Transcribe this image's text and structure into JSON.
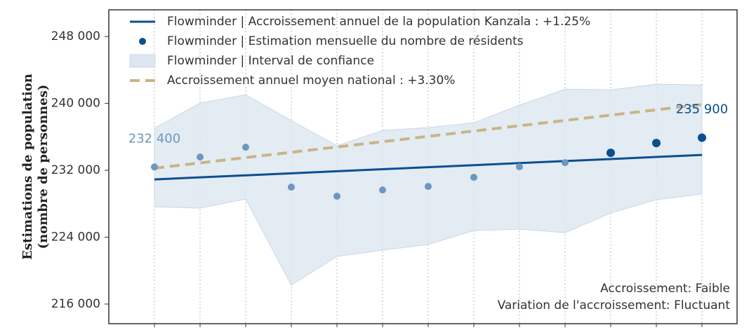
{
  "chart_data": {
    "type": "line",
    "ylabel": [
      "Estimations de population",
      "(nombre de personnes)"
    ],
    "categories": [
      null,
      null,
      null,
      null,
      null,
      null,
      null,
      null,
      null,
      null,
      null,
      null,
      null
    ],
    "ylim": [
      213650,
      251200
    ],
    "yticks": [
      {
        "value": 216000,
        "label": "216 000"
      },
      {
        "value": 224000,
        "label": "224 000"
      },
      {
        "value": 232000,
        "label": "232 000"
      },
      {
        "value": 240000,
        "label": "240 000"
      },
      {
        "value": 248000,
        "label": "248 000"
      }
    ],
    "grid": true,
    "legend": "upper left",
    "series": [
      {
        "name": "Flowminder | Accroissement annuel de la population Kanzala : +1.25%",
        "kind": "line",
        "color": "#0b4f8f",
        "values": [
          230910,
          231154,
          231398,
          231642,
          231886,
          232130,
          232374,
          232618,
          232862,
          233106,
          233350,
          233594,
          233838
        ]
      },
      {
        "name": "Flowminder | Estimation mensuelle du nombre de résidents",
        "kind": "scatter",
        "color": "#0b4f8f",
        "colors": [
          "#6e97bf",
          "#6e97bf",
          "#6e97bf",
          "#6e97bf",
          "#6e97bf",
          "#6e97bf",
          "#6e97bf",
          "#6e97bf",
          "#6e97bf",
          "#6e97bf",
          "#0b4f8f",
          "#0b4f8f",
          "#0b4f8f"
        ],
        "values": [
          232400,
          233590,
          234760,
          229990,
          228900,
          229650,
          230070,
          231160,
          232420,
          232920,
          234090,
          235260,
          235900
        ],
        "value_labels": [
          "232 400",
          null,
          null,
          null,
          null,
          null,
          null,
          null,
          null,
          null,
          null,
          null,
          "235 900"
        ]
      },
      {
        "name": "Flowminder | Interval de confiance",
        "kind": "band",
        "color": "#dce6f0",
        "upper": [
          237020,
          240040,
          241040,
          237940,
          234930,
          236770,
          237110,
          237690,
          239790,
          241710,
          241630,
          242300,
          242210
        ],
        "lower": [
          227640,
          227470,
          228560,
          218260,
          221700,
          222450,
          223120,
          224800,
          224960,
          224540,
          226890,
          228480,
          229150
        ]
      },
      {
        "name": "Accroissement annuel moyen national : +3.30%",
        "kind": "line",
        "dash": true,
        "color": "#c8b488",
        "values": [
          232250,
          232885,
          233520,
          234155,
          234790,
          235425,
          236060,
          236695,
          237330,
          237965,
          238600,
          239235,
          239870
        ]
      }
    ],
    "annotations": [
      "Accroissement: Faible",
      "Variation de l'accroissement: Fluctuant"
    ]
  }
}
